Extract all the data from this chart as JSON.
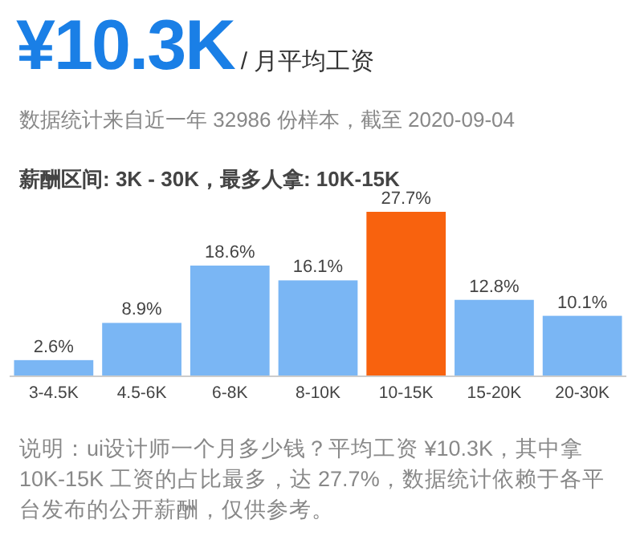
{
  "chart_data": {
    "type": "bar",
    "title": "¥10.3K",
    "subtitle": "/ 月平均工资",
    "annotations": [
      "数据统计来自近一年 32986 份样本，截至 2020-09-04",
      "薪酬区间: 3K - 30K，最多人拿: 10K-15K",
      "说明：ui设计师一个月多少钱？平均工资 ¥10.3K，其中拿10K-15K 工资的占比最多，达 27.7%，数据统计依赖于各平台发布的公开薪酬，仅供参考。"
    ],
    "categories": [
      "3-4.5K",
      "4.5-6K",
      "6-8K",
      "8-10K",
      "10-15K",
      "15-20K",
      "20-30K"
    ],
    "values": [
      2.6,
      8.9,
      18.6,
      16.1,
      27.7,
      12.8,
      10.1
    ],
    "colors": [
      "#7ab6f4",
      "#7ab6f4",
      "#7ab6f4",
      "#7ab6f4",
      "#f8620e",
      "#7ab6f4",
      "#7ab6f4"
    ],
    "value_labels": [
      "2.6%",
      "8.9%",
      "18.6%",
      "16.1%",
      "27.7%",
      "12.8%",
      "10.1%"
    ]
  }
}
